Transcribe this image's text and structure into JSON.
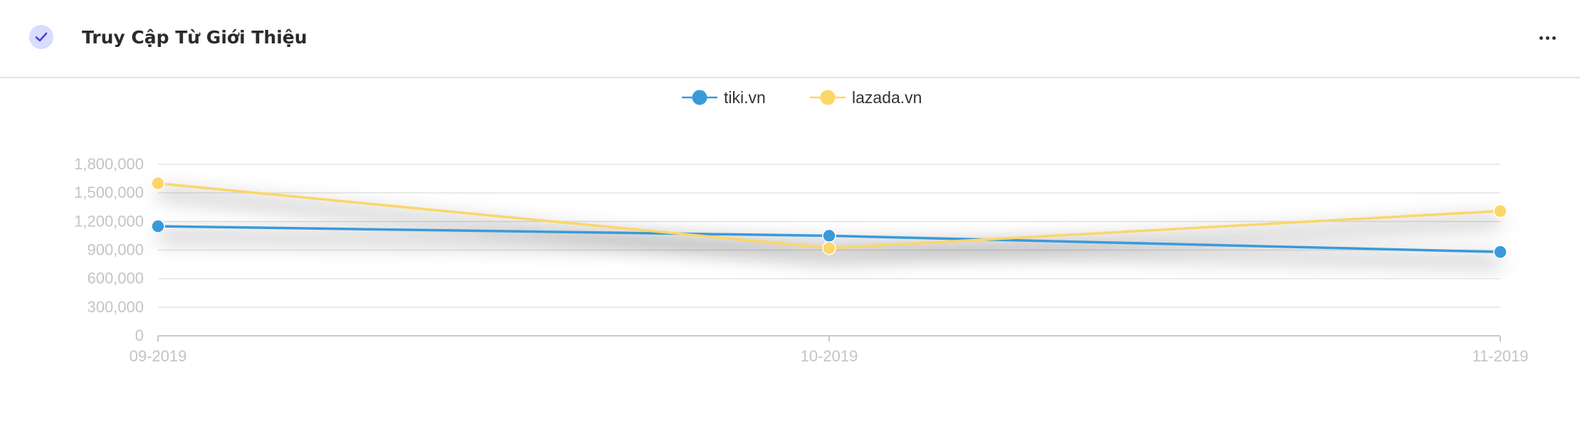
{
  "header": {
    "title": "Truy Cập Từ Giới Thiệu",
    "check_icon": "check-icon",
    "more_icon": "more-horizontal-icon"
  },
  "chart_data": {
    "type": "line",
    "title": "",
    "xlabel": "",
    "ylabel": "",
    "categories": [
      "09-2019",
      "10-2019",
      "11-2019"
    ],
    "y_ticks": [
      "0",
      "300,000",
      "600,000",
      "900,000",
      "1,200,000",
      "1,500,000",
      "1,800,000"
    ],
    "ylim": [
      0,
      1800000
    ],
    "grid": true,
    "legend_position": "top-center",
    "series": [
      {
        "name": "tiki.vn",
        "color": "#3a9ad9",
        "values": [
          1150000,
          1050000,
          880000
        ]
      },
      {
        "name": "lazada.vn",
        "color": "#fcd667",
        "values": [
          1600000,
          920000,
          1310000
        ]
      }
    ]
  }
}
